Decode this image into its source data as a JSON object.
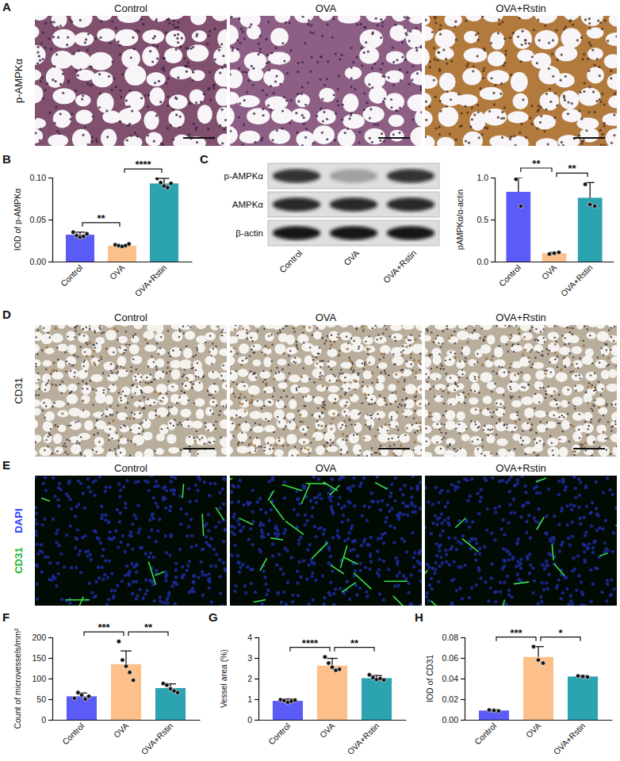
{
  "figure": {
    "letters": [
      "A",
      "B",
      "C",
      "D",
      "E",
      "F",
      "G",
      "H"
    ],
    "image_rows": [
      {
        "row_labels": [
          "p-AMPKα"
        ],
        "titles": [
          "Control",
          "OVA",
          "OVA+Rstin"
        ]
      },
      {
        "row_labels": [
          "CD31"
        ],
        "titles": [
          "Control",
          "OVA",
          "OVA+Rstin"
        ]
      },
      {
        "row_labels": [
          "DAPI",
          "CD31"
        ],
        "titles": [
          "Control",
          "OVA",
          "OVA+Rstin"
        ]
      }
    ],
    "blot": {
      "bands": [
        "p-AMPKα",
        "AMPKα",
        "β-actin"
      ],
      "lanes": [
        "Control",
        "OVA",
        "OVA+Rstin"
      ]
    }
  },
  "chart_data": [
    {
      "type": "bar",
      "y_label": "IOD of p-AMPKα",
      "categories": [
        "Control",
        "OVA",
        "OVA+Rstin"
      ],
      "values": [
        0.032,
        0.019,
        0.093
      ],
      "errors": [
        0.003,
        0.001,
        0.006
      ],
      "points": [
        [
          0.035,
          0.031,
          0.029,
          0.03,
          0.033
        ],
        [
          0.02,
          0.019,
          0.018,
          0.019,
          0.021
        ],
        [
          0.099,
          0.094,
          0.09,
          0.088,
          0.093
        ]
      ],
      "colors": [
        "#5b5bf7",
        "#fdc08b",
        "#2ba3b0"
      ],
      "ylim": [
        0,
        0.1
      ],
      "yticks": [
        {
          "value": 0,
          "label": "0.00"
        },
        0.05,
        {
          "value": 0.1,
          "label": "0.10"
        }
      ],
      "significance": [
        {
          "between": [
            "Control",
            "OVA"
          ],
          "label": "**"
        },
        {
          "between": [
            "OVA",
            "OVA+Rstin"
          ],
          "label": "****"
        }
      ]
    },
    {
      "type": "bar",
      "y_label": "pAMPKα/α-actin",
      "categories": [
        "Control",
        "OVA",
        "OVA+Rstin"
      ],
      "values": [
        0.83,
        0.1,
        0.76
      ],
      "errors": [
        0.17,
        0.01,
        0.18
      ],
      "points": [
        [
          0.98,
          0.66
        ],
        [
          0.09,
          0.1,
          0.11
        ],
        [
          0.92,
          0.68,
          0.66
        ]
      ],
      "colors": [
        "#5b5bf7",
        "#fdc08b",
        "#2ba3b0"
      ],
      "ylim": [
        0,
        1
      ],
      "yticks": [
        {
          "value": 0,
          "label": "0.0"
        },
        0.5,
        {
          "value": 1,
          "label": "1.0"
        }
      ],
      "significance": [
        {
          "between": [
            "Control",
            "OVA"
          ],
          "label": "**"
        },
        {
          "between": [
            "OVA",
            "OVA+Rstin"
          ],
          "label": "**"
        }
      ]
    },
    {
      "type": "bar",
      "y_label": "Count of microvessels/mm²",
      "categories": [
        "Control",
        "OVA",
        "OVA+Rstin"
      ],
      "values": [
        57,
        135,
        77
      ],
      "errors": [
        8,
        32,
        10
      ],
      "points": [
        [
          52,
          66,
          60,
          50,
          57
        ],
        [
          190,
          145,
          130,
          115,
          96
        ],
        [
          88,
          84,
          75,
          70,
          66
        ]
      ],
      "colors": [
        "#5b5bf7",
        "#fdc08b",
        "#2ba3b0"
      ],
      "ylim": [
        0,
        200
      ],
      "yticks": [
        0,
        50,
        100,
        150,
        200
      ],
      "significance": [
        {
          "between": [
            "Control",
            "OVA"
          ],
          "label": "***"
        },
        {
          "between": [
            "OVA",
            "OVA+Rstin"
          ],
          "label": "**"
        }
      ]
    },
    {
      "type": "bar",
      "y_label": "Vessel area (%)",
      "categories": [
        "Control",
        "OVA",
        "OVA+Rstin"
      ],
      "values": [
        0.92,
        2.63,
        2.02
      ],
      "errors": [
        0.09,
        0.35,
        0.13
      ],
      "points": [
        [
          0.97,
          0.93,
          0.85,
          0.9,
          0.95
        ],
        [
          3.05,
          2.75,
          2.55,
          2.4,
          2.45
        ],
        [
          2.18,
          2.05,
          1.95,
          2.0,
          1.93
        ]
      ],
      "colors": [
        "#5b5bf7",
        "#fdc08b",
        "#2ba3b0"
      ],
      "ylim": [
        0,
        4
      ],
      "yticks": [
        0,
        1,
        2,
        3,
        4
      ],
      "significance": [
        {
          "between": [
            "Control",
            "OVA"
          ],
          "label": "****"
        },
        {
          "between": [
            "OVA",
            "OVA+Rstin"
          ],
          "label": "**"
        }
      ]
    },
    {
      "type": "bar",
      "y_label": "IOD of CD31",
      "categories": [
        "Control",
        "OVA",
        "OVA+Rstin"
      ],
      "values": [
        0.009,
        0.061,
        0.042
      ],
      "errors": [
        0.0008,
        0.01,
        0.0008
      ],
      "points": [
        [
          0.0095,
          0.009,
          0.0085
        ],
        [
          0.071,
          0.058,
          0.055
        ],
        [
          0.0425,
          0.042,
          0.0415
        ]
      ],
      "colors": [
        "#5b5bf7",
        "#fdc08b",
        "#2ba3b0"
      ],
      "ylim": [
        0,
        0.08
      ],
      "yticks": [
        {
          "value": 0,
          "label": "0.00"
        },
        0.02,
        0.04,
        0.06,
        0.08
      ],
      "significance": [
        {
          "between": [
            "Control",
            "OVA"
          ],
          "label": "***"
        },
        {
          "between": [
            "OVA",
            "OVA+Rstin"
          ],
          "label": "*"
        }
      ]
    }
  ]
}
